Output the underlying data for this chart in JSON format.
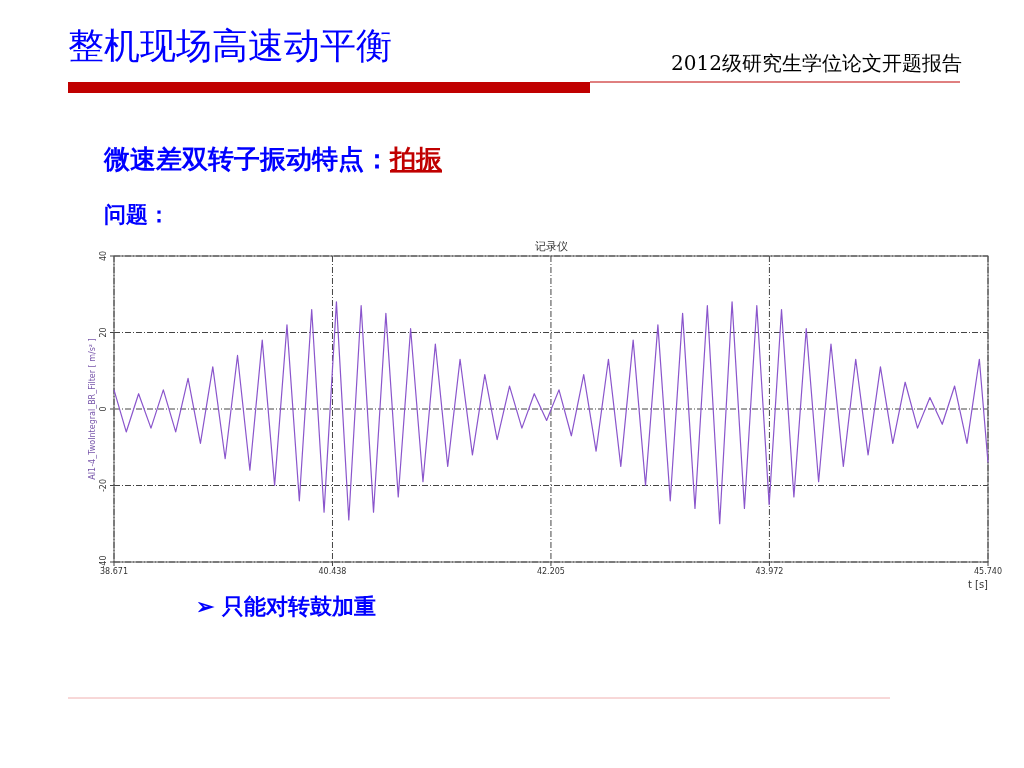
{
  "chart_data": {
    "type": "line",
    "title": "整机现场高速动平衡",
    "subtitle": "2012级研究生学位论文开题报告",
    "annotations": [
      "记录仪",
      "微速差双转子振动特点：",
      "拍振",
      "问题：",
      "➢  只能对转鼓加重"
    ],
    "xlabel": "t [s]",
    "ylabel": "AI1-4_TwoIntegral_BR_Filter [ m/s² ]",
    "xlim": [
      38.671,
      45.74
    ],
    "xticks": [
      38.671,
      40.438,
      42.205,
      43.972,
      {
        "value": 45.74,
        "label": "45.740"
      }
    ],
    "ylim": [
      -40,
      40
    ],
    "yticks": [
      -40,
      -20,
      0,
      20,
      40
    ],
    "grid": true,
    "x": [
      38.671,
      38.77,
      38.87,
      38.97,
      39.07,
      39.17,
      39.27,
      39.37,
      39.47,
      39.57,
      39.67,
      39.77,
      39.87,
      39.97,
      40.07,
      40.17,
      40.27,
      40.37,
      40.47,
      40.57,
      40.67,
      40.77,
      40.87,
      40.97,
      41.07,
      41.17,
      41.27,
      41.37,
      41.47,
      41.57,
      41.67,
      41.77,
      41.87,
      41.97,
      42.07,
      42.17,
      42.27,
      42.37,
      42.47,
      42.57,
      42.67,
      42.77,
      42.87,
      42.97,
      43.07,
      43.17,
      43.27,
      43.37,
      43.47,
      43.57,
      43.67,
      43.77,
      43.87,
      43.97,
      44.07,
      44.17,
      44.27,
      44.37,
      44.47,
      44.57,
      44.67,
      44.77,
      44.87,
      44.97,
      45.07,
      45.17,
      45.27,
      45.37,
      45.47,
      45.57,
      45.67,
      45.74
    ],
    "series": [
      {
        "color": "#8a55cc",
        "values": [
          5,
          -6,
          4,
          -5,
          5,
          -6,
          8,
          -9,
          11,
          -13,
          14,
          -16,
          18,
          -20,
          22,
          -24,
          26,
          -27,
          28,
          -29,
          27,
          -27,
          25,
          -23,
          21,
          -19,
          17,
          -15,
          13,
          -12,
          9,
          -8,
          6,
          -5,
          4,
          -3,
          5,
          -7,
          9,
          -11,
          13,
          -15,
          18,
          -20,
          22,
          -24,
          25,
          -26,
          27,
          -30,
          28,
          -26,
          27,
          -25,
          26,
          -23,
          21,
          -19,
          17,
          -15,
          13,
          -12,
          11,
          -9,
          7,
          -5,
          3,
          -4,
          6,
          -9,
          13,
          -14
        ]
      }
    ]
  }
}
